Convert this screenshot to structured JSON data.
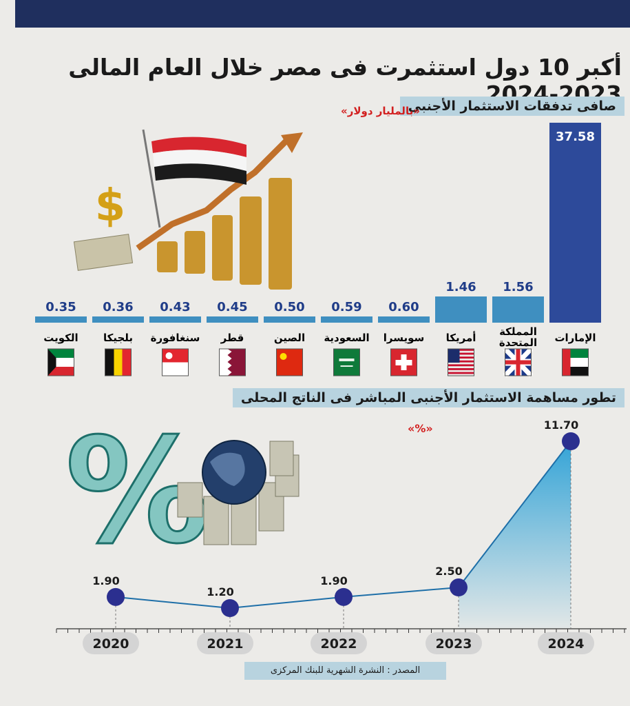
{
  "title": "أكبر 10 دول استثمرت فى مصر خلال العام المالى 2023-2024",
  "chart_data": [
    {
      "type": "bar",
      "title": "صافى تدفقات الاستثمار الأجنبى",
      "unit": "«بالمليار دولار»",
      "categories": [
        "الإمارات",
        "المملكة المتحدة",
        "أمريكا",
        "سويسرا",
        "السعودية",
        "الصين",
        "قطر",
        "سنغافورة",
        "بلجيكا",
        "الكويت"
      ],
      "values": [
        37.58,
        1.56,
        1.46,
        0.6,
        0.59,
        0.5,
        0.45,
        0.43,
        0.36,
        0.35
      ],
      "value_labels": [
        "37.58",
        "1.56",
        "1.46",
        "0.60",
        "0.59",
        "0.50",
        "0.45",
        "0.43",
        "0.36",
        "0.35"
      ],
      "colors": {
        "bar": "#2d4a9a",
        "bar_light": "#3f8fc0"
      }
    },
    {
      "type": "line",
      "title": "تطور مساهمة الاستثمار الأجنبى المباشر فى الناتج المحلى",
      "unit": "«%»",
      "x": [
        "2020",
        "2021",
        "2022",
        "2023",
        "2024"
      ],
      "values": [
        1.9,
        1.2,
        1.9,
        2.5,
        11.7
      ],
      "value_labels": [
        "1.90",
        "1.20",
        "1.90",
        "2.50",
        "11.70"
      ],
      "colors": {
        "marker": "#2b2f8f",
        "line": "#1e6fa8"
      }
    }
  ],
  "source": "المصدر : النشرة الشهرية للبنك المركزى"
}
